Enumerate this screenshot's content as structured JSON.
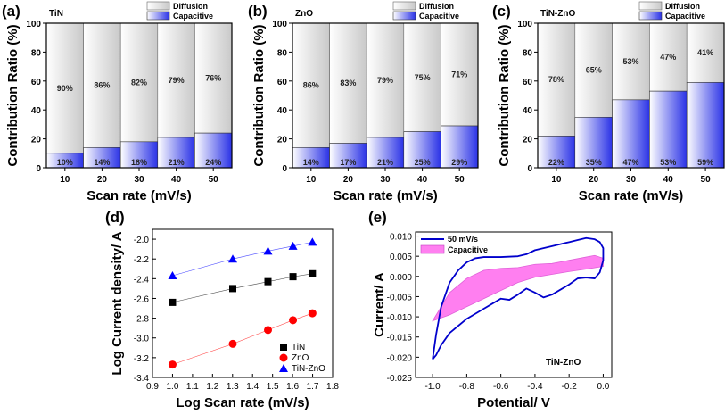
{
  "chart_data": [
    {
      "id": "a",
      "panel_label": "(a)",
      "type": "bar",
      "stacked": true,
      "title": "TiN",
      "categories": [
        "10",
        "20",
        "30",
        "40",
        "50"
      ],
      "series": [
        {
          "name": "Capacitive",
          "values": [
            10,
            14,
            18,
            21,
            24
          ],
          "labels": [
            "10%",
            "14%",
            "18%",
            "21%",
            "24%"
          ]
        },
        {
          "name": "Diffusion",
          "values": [
            90,
            86,
            82,
            79,
            76
          ],
          "labels": [
            "90%",
            "86%",
            "82%",
            "79%",
            "76%"
          ]
        }
      ],
      "xlabel": "Scan rate (mV/s)",
      "ylabel": "Contribution Ratio (%)",
      "ylim": [
        0,
        100
      ],
      "yticks": [
        "0",
        "20",
        "40",
        "60",
        "80",
        "100"
      ],
      "legend": "top-right"
    },
    {
      "id": "b",
      "panel_label": "(b)",
      "type": "bar",
      "stacked": true,
      "title": "ZnO",
      "categories": [
        "10",
        "20",
        "30",
        "40",
        "50"
      ],
      "series": [
        {
          "name": "Capacitive",
          "values": [
            14,
            17,
            21,
            25,
            29
          ],
          "labels": [
            "14%",
            "17%",
            "21%",
            "25%",
            "29%"
          ]
        },
        {
          "name": "Diffusion",
          "values": [
            86,
            83,
            79,
            75,
            71
          ],
          "labels": [
            "86%",
            "83%",
            "79%",
            "75%",
            "71%"
          ]
        }
      ],
      "xlabel": "Scan rate (mV/s)",
      "ylabel": "Contribution Ratio (%)",
      "ylim": [
        0,
        100
      ],
      "yticks": [
        "0",
        "20",
        "40",
        "60",
        "80",
        "100"
      ],
      "legend": "top-right"
    },
    {
      "id": "c",
      "panel_label": "(c)",
      "type": "bar",
      "stacked": true,
      "title": "TiN-ZnO",
      "categories": [
        "10",
        "20",
        "30",
        "40",
        "50"
      ],
      "series": [
        {
          "name": "Capacitive",
          "values": [
            22,
            35,
            47,
            53,
            59
          ],
          "labels": [
            "22%",
            "35%",
            "47%",
            "53%",
            "59%"
          ]
        },
        {
          "name": "Diffusion",
          "values": [
            78,
            65,
            53,
            47,
            41
          ],
          "labels": [
            "78%",
            "65%",
            "53%",
            "47%",
            "41%"
          ]
        }
      ],
      "xlabel": "Scan rate (mV/s)",
      "ylabel": "Contribution Ratio (%)",
      "ylim": [
        0,
        100
      ],
      "yticks": [
        "0",
        "20",
        "40",
        "60",
        "80",
        "100"
      ],
      "legend": "top-right"
    },
    {
      "id": "d",
      "panel_label": "(d)",
      "type": "scatter",
      "xlabel": "Log Scan rate (mV/s)",
      "ylabel": "Log Current density/ A",
      "xlim": [
        0.9,
        1.8
      ],
      "ylim": [
        -3.4,
        -1.9
      ],
      "xticks": [
        "0.9",
        "1.0",
        "1.1",
        "1.2",
        "1.3",
        "1.4",
        "1.5",
        "1.6",
        "1.7",
        "1.8"
      ],
      "yticks": [
        "-3.4",
        "-3.2",
        "-3.0",
        "-2.8",
        "-2.6",
        "-2.4",
        "-2.2",
        "-2.0"
      ],
      "x": [
        1.0,
        1.301,
        1.477,
        1.602,
        1.699
      ],
      "series": [
        {
          "name": "TiN",
          "color": "#000000",
          "marker": "square",
          "values": [
            -2.64,
            -2.5,
            -2.43,
            -2.38,
            -2.35
          ]
        },
        {
          "name": "ZnO",
          "color": "#ff0000",
          "marker": "circle",
          "values": [
            -3.27,
            -3.06,
            -2.92,
            -2.82,
            -2.75
          ]
        },
        {
          "name": "TiN-ZnO",
          "color": "#0000ff",
          "marker": "triangle",
          "values": [
            -2.37,
            -2.2,
            -2.12,
            -2.07,
            -2.03
          ]
        }
      ],
      "legend": "bottom-right"
    },
    {
      "id": "e",
      "panel_label": "(e)",
      "type": "line",
      "xlabel": "Potential/ V",
      "ylabel": "Current/ A",
      "xlim": [
        -1.1,
        0.05
      ],
      "ylim": [
        -0.025,
        0.011
      ],
      "xticks": [
        "-1.0",
        "-0.8",
        "-0.6",
        "-0.4",
        "-0.2",
        "0.0"
      ],
      "yticks": [
        "-0.025",
        "-0.020",
        "-0.015",
        "-0.010",
        "-0.005",
        "0.000",
        "0.005",
        "0.010"
      ],
      "annotation": "TiN-ZnO",
      "series": [
        {
          "name": "50 mV/s",
          "color": "#0000cc",
          "x": [
            -1.0,
            -0.98,
            -0.95,
            -0.9,
            -0.85,
            -0.8,
            -0.75,
            -0.7,
            -0.6,
            -0.5,
            -0.45,
            -0.4,
            -0.3,
            -0.2,
            -0.15,
            -0.1,
            -0.05,
            -0.02,
            0.0,
            0.0,
            -0.02,
            -0.05,
            -0.1,
            -0.15,
            -0.2,
            -0.3,
            -0.35,
            -0.4,
            -0.45,
            -0.5,
            -0.55,
            -0.6,
            -0.7,
            -0.8,
            -0.9,
            -0.95,
            -0.98,
            -1.0
          ],
          "y": [
            -0.0205,
            -0.0145,
            -0.0075,
            -0.0015,
            0.0015,
            0.0035,
            0.0045,
            0.0048,
            0.0048,
            0.005,
            0.0055,
            0.0065,
            0.0075,
            0.0085,
            0.009,
            0.0095,
            0.0092,
            0.0085,
            0.007,
            0.004,
            0.001,
            -0.0005,
            -0.0003,
            -0.0005,
            -0.002,
            -0.0045,
            -0.0052,
            -0.004,
            -0.003,
            -0.0045,
            -0.0058,
            -0.0055,
            -0.008,
            -0.0105,
            -0.014,
            -0.017,
            -0.0195,
            -0.0205
          ]
        },
        {
          "name": "Capacitive",
          "color": "#ff7ff0",
          "x": [
            -1.0,
            -0.9,
            -0.8,
            -0.7,
            -0.6,
            -0.5,
            -0.4,
            -0.3,
            -0.2,
            -0.1,
            -0.05,
            0.0,
            0.0,
            -0.1,
            -0.2,
            -0.3,
            -0.4,
            -0.5,
            -0.6,
            -0.7,
            -0.8,
            -0.9,
            -1.0
          ],
          "y": [
            -0.011,
            -0.004,
            -0.0005,
            0.0015,
            0.002,
            0.0022,
            0.003,
            0.0032,
            0.004,
            0.0048,
            0.0052,
            0.0045,
            0.0025,
            0.0018,
            0.0012,
            0.0005,
            -0.0002,
            -0.0015,
            -0.0035,
            -0.0055,
            -0.0075,
            -0.0095,
            -0.011
          ]
        }
      ],
      "legend": "top-left"
    }
  ]
}
